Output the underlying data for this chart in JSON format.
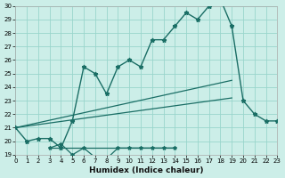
{
  "bg_color": "#cceee8",
  "line_color": "#1a6e65",
  "grid_color": "#99d5cc",
  "xlabel": "Humidex (Indice chaleur)",
  "xlim": [
    0,
    23
  ],
  "ylim": [
    19,
    30
  ],
  "xticks": [
    0,
    1,
    2,
    3,
    4,
    5,
    6,
    7,
    8,
    9,
    10,
    11,
    12,
    13,
    14,
    15,
    16,
    17,
    18,
    19,
    20,
    21,
    22,
    23
  ],
  "yticks": [
    19,
    20,
    21,
    22,
    23,
    24,
    25,
    26,
    27,
    28,
    29,
    30
  ],
  "main_curve_x": [
    0,
    1,
    2,
    3,
    4,
    5,
    6,
    7,
    8,
    9,
    10,
    11,
    12,
    13,
    14,
    15,
    16,
    17,
    18,
    19,
    20,
    21,
    22,
    23
  ],
  "main_curve_y": [
    21,
    20,
    20.2,
    20.2,
    19.5,
    21.5,
    25.5,
    25,
    23.5,
    25.5,
    26,
    25.5,
    27.5,
    27.5,
    28.5,
    29.5,
    29,
    30,
    30.5,
    28.5,
    23,
    22,
    21.5,
    21.5
  ],
  "lower_curve_x": [
    3,
    4,
    5,
    6,
    7,
    8,
    9,
    10,
    11,
    12,
    13,
    14
  ],
  "lower_curve_y": [
    19.5,
    19.8,
    19,
    19.5,
    18.8,
    18.7,
    19.5,
    19.5,
    19.5,
    19.5,
    19.5,
    19.5
  ],
  "ref_line1_x": [
    0,
    19
  ],
  "ref_line1_y": [
    21,
    24.5
  ],
  "ref_line2_x": [
    0,
    19
  ],
  "ref_line2_y": [
    21,
    23.2
  ],
  "flat_line_x": [
    3,
    14
  ],
  "flat_line_y": [
    19.5,
    19.5
  ]
}
